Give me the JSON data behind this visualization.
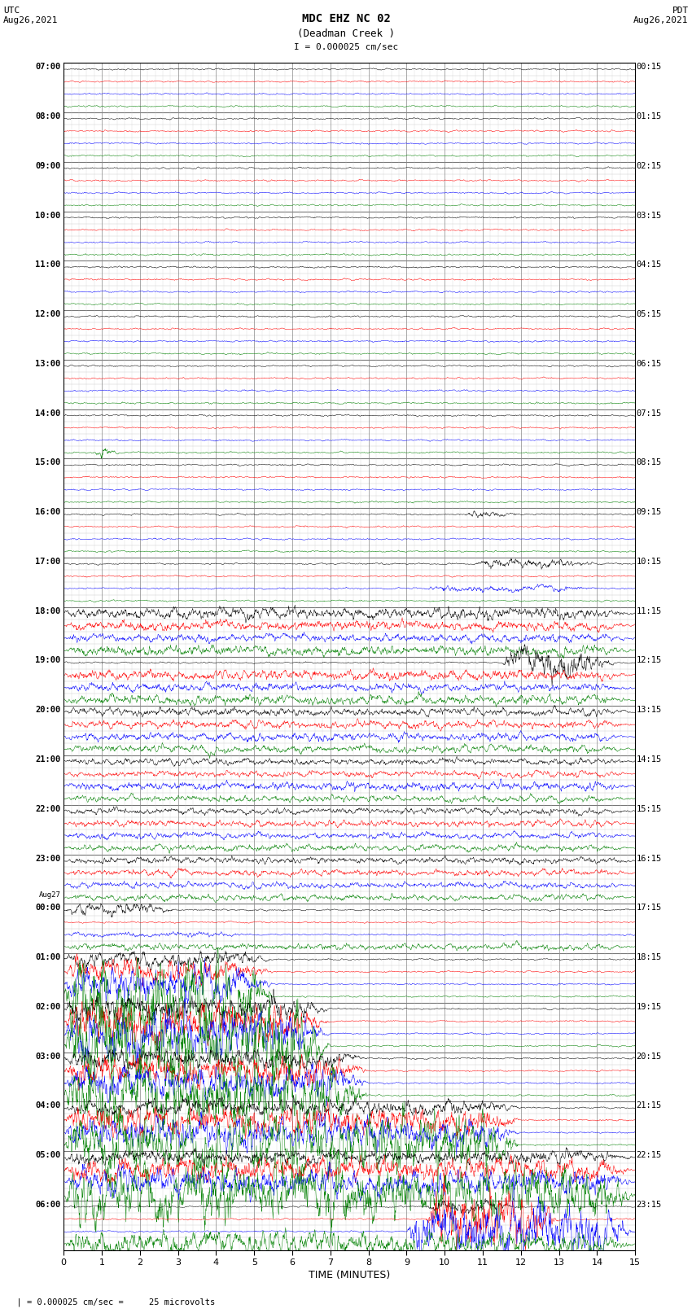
{
  "title_line1": "MDC EHZ NC 02",
  "title_line2": "(Deadman Creek )",
  "scale_label": "I = 0.000025 cm/sec",
  "utc_label": "UTC\nAug26,2021",
  "pdt_label": "PDT\nAug26,2021",
  "footer_label": "  | = 0.000025 cm/sec =     25 microvolts",
  "xlabel": "TIME (MINUTES)",
  "bg_color": "#ffffff",
  "grid_color": "#888888",
  "colors": [
    "black",
    "red",
    "blue",
    "green"
  ],
  "minutes_per_row": 15,
  "utc_hours_left": [
    "07:00",
    "08:00",
    "09:00",
    "10:00",
    "11:00",
    "12:00",
    "13:00",
    "14:00",
    "15:00",
    "16:00",
    "17:00",
    "18:00",
    "19:00",
    "20:00",
    "21:00",
    "22:00",
    "23:00",
    "00:00",
    "01:00",
    "02:00",
    "03:00",
    "04:00",
    "05:00",
    "06:00"
  ],
  "aug27_row": 17,
  "pdt_hours_right": [
    "00:15",
    "01:15",
    "02:15",
    "03:15",
    "04:15",
    "05:15",
    "06:15",
    "07:15",
    "08:15",
    "09:15",
    "10:15",
    "11:15",
    "12:15",
    "13:15",
    "14:15",
    "15:15",
    "16:15",
    "17:15",
    "18:15",
    "19:15",
    "20:15",
    "21:15",
    "22:15",
    "23:15"
  ],
  "n_traces_per_row": 4,
  "seed": 42,
  "base_amp": 0.03,
  "ar_alpha": 0.85,
  "n_pts": 2000,
  "special_events": {
    "comment": "row(0-based), trace(0=black,1=red,2=blue,3=green): [t_start_min, t_end_min, amp_mult]",
    "7_3": [
      0.8,
      1.5,
      12
    ],
    "9_0": [
      10.5,
      12.0,
      5
    ],
    "10_0": [
      10.8,
      14.0,
      6
    ],
    "10_2": [
      9.5,
      14.0,
      4
    ],
    "11_0": [
      0,
      15,
      7
    ],
    "11_1": [
      0,
      15,
      6
    ],
    "11_2": [
      0,
      15,
      5
    ],
    "11_3": [
      0,
      15,
      6
    ],
    "12_0": [
      11.5,
      14.5,
      18
    ],
    "12_1": [
      0,
      15,
      6
    ],
    "12_2": [
      0,
      15,
      5
    ],
    "12_3": [
      0,
      15,
      6
    ],
    "13_0": [
      0,
      15,
      5
    ],
    "13_1": [
      0,
      15,
      5
    ],
    "13_2": [
      0,
      15,
      5
    ],
    "13_3": [
      0,
      15,
      5
    ],
    "14_0": [
      0,
      15,
      4
    ],
    "14_1": [
      0,
      15,
      4
    ],
    "14_2": [
      0,
      15,
      5
    ],
    "14_3": [
      0,
      15,
      4
    ],
    "15_0": [
      0,
      15,
      4
    ],
    "15_1": [
      0,
      15,
      4
    ],
    "15_2": [
      0,
      15,
      4
    ],
    "15_3": [
      0,
      15,
      4
    ],
    "16_0": [
      0,
      15,
      4
    ],
    "16_1": [
      0,
      15,
      4
    ],
    "16_2": [
      0,
      15,
      4
    ],
    "16_3": [
      0,
      15,
      4
    ],
    "17_3": [
      0,
      15,
      4
    ],
    "17_2": [
      0,
      5,
      3
    ],
    "17_0": [
      0,
      3,
      8
    ],
    "18_3": [
      0,
      5.5,
      55
    ],
    "18_2": [
      0,
      5.5,
      20
    ],
    "18_1": [
      0,
      5.5,
      15
    ],
    "18_0": [
      0,
      5.5,
      10
    ],
    "19_3": [
      0,
      7,
      60
    ],
    "19_2": [
      0,
      7,
      30
    ],
    "19_1": [
      0,
      7,
      25
    ],
    "19_0": [
      0,
      7,
      15
    ],
    "20_3": [
      0,
      8,
      45
    ],
    "20_2": [
      0,
      8,
      20
    ],
    "20_1": [
      0,
      8,
      18
    ],
    "20_0": [
      0,
      8,
      12
    ],
    "21_3": [
      0,
      12,
      40
    ],
    "21_2": [
      0,
      12,
      18
    ],
    "21_1": [
      0,
      12,
      16
    ],
    "21_0": [
      0,
      12,
      10
    ],
    "22_3": [
      0,
      15,
      35
    ],
    "22_2": [
      0,
      15,
      16
    ],
    "22_1": [
      0,
      15,
      14
    ],
    "22_0": [
      0,
      15,
      8
    ],
    "23_3": [
      0,
      15,
      15
    ],
    "23_2": [
      9,
      15,
      35
    ],
    "23_1": [
      9.5,
      13,
      40
    ],
    "23_0": [
      9.5,
      12,
      8
    ]
  }
}
